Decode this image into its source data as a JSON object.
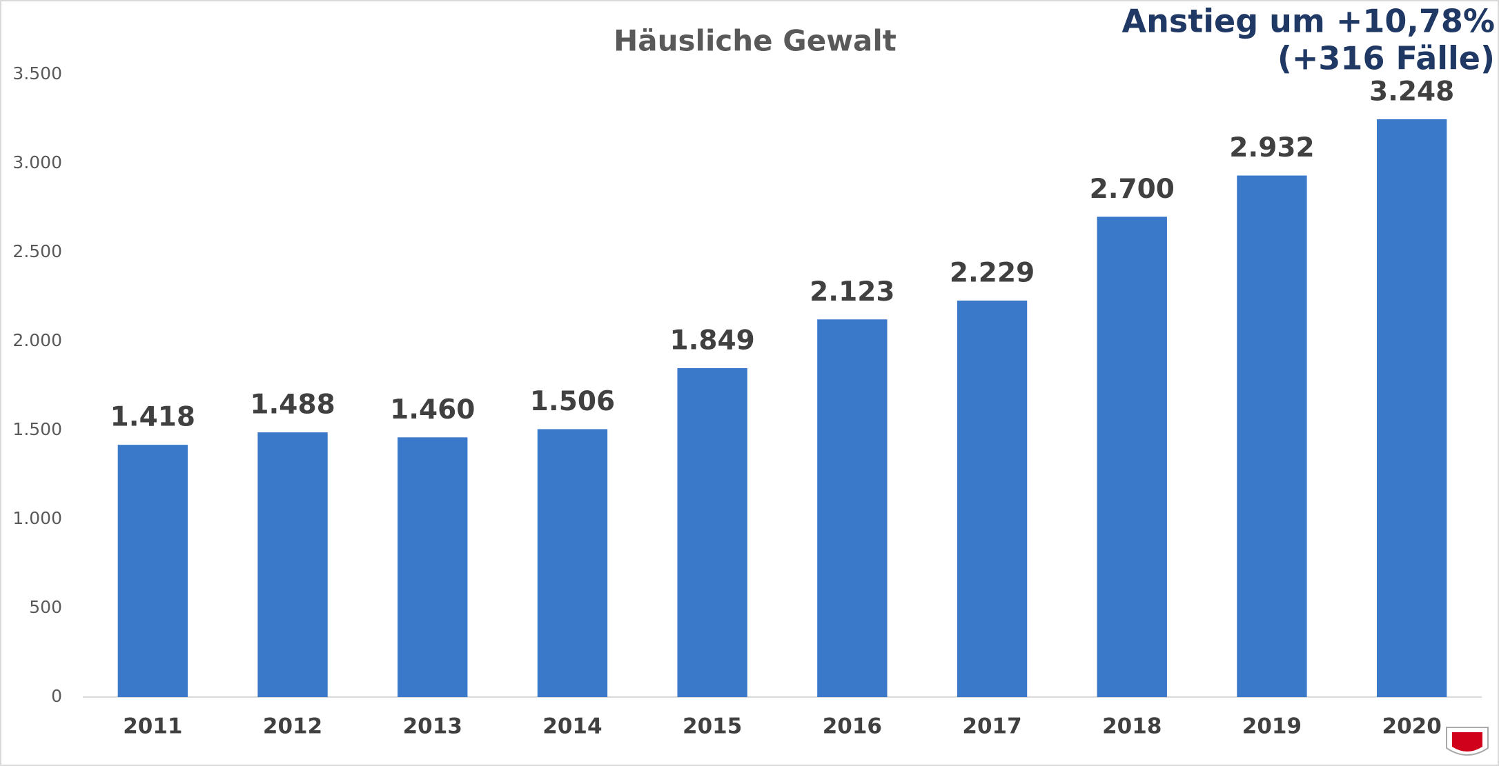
{
  "chart_data": {
    "type": "bar",
    "title": "Häusliche Gewalt",
    "annotations": [
      "Anstieg um +10,78%",
      "(+316 Fälle)"
    ],
    "categories": [
      "2011",
      "2012",
      "2013",
      "2014",
      "2015",
      "2016",
      "2017",
      "2018",
      "2019",
      "2020"
    ],
    "values": [
      1418,
      1488,
      1460,
      1506,
      1849,
      2123,
      2229,
      2700,
      2932,
      3248
    ],
    "value_labels": [
      "1.418",
      "1.488",
      "1.460",
      "1.506",
      "1.849",
      "2.123",
      "2.229",
      "2.700",
      "2.932",
      "3.248"
    ],
    "color": "#3a78c9",
    "ylim": [
      0,
      3500
    ],
    "yticks": [
      0,
      500,
      {
        "value": 1000,
        "label": "1.000"
      },
      {
        "value": 1500,
        "label": "1.500"
      },
      {
        "value": 2000,
        "label": "2.000"
      },
      {
        "value": 2500,
        "label": "2.500"
      },
      {
        "value": 3000,
        "label": "3.000"
      },
      {
        "value": 3500,
        "label": "3.500"
      }
    ],
    "grid": false
  }
}
